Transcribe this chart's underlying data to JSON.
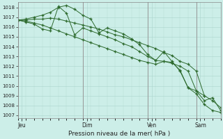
{
  "background_color": "#cceee8",
  "grid_color": "#aad4cc",
  "line_color": "#2d6a2d",
  "marker_color": "#2d6a2d",
  "ylabel_values": [
    1007,
    1008,
    1009,
    1010,
    1011,
    1012,
    1013,
    1014,
    1015,
    1016,
    1017,
    1018
  ],
  "ylim": [
    1006.7,
    1018.5
  ],
  "xlabel": "Pression niveau de la mer( hPa )",
  "xtick_labels": [
    "Jeu",
    "Dim",
    "Ven",
    "Sam"
  ],
  "series": [
    {
      "x": [
        0,
        1,
        2,
        3,
        4,
        5,
        6,
        7,
        8,
        9,
        10,
        11,
        12,
        13,
        14,
        15,
        16,
        17,
        18,
        19,
        20,
        21,
        22,
        23
      ],
      "y": [
        1016.7,
        1016.7,
        1016.8,
        1016.8,
        1016.9,
        1016.8,
        1016.6,
        1016.4,
        1016.2,
        1016.0,
        1015.8,
        1015.5,
        1015.2,
        1015.0,
        1014.7,
        1014.4,
        1014.1,
        1013.8,
        1013.4,
        1013.1,
        1012.5,
        1012.2,
        1011.5,
        1009.0
      ]
    },
    {
      "x": [
        0,
        1,
        2,
        3,
        4,
        5,
        6,
        7,
        8,
        9,
        10,
        11,
        12,
        13,
        14,
        15,
        16,
        17,
        18,
        19,
        20,
        21,
        22,
        23,
        24,
        25
      ],
      "y": [
        1016.7,
        1016.6,
        1016.4,
        1016.2,
        1015.9,
        1015.6,
        1015.3,
        1015.0,
        1014.7,
        1014.4,
        1014.1,
        1013.8,
        1013.5,
        1013.2,
        1012.9,
        1012.6,
        1012.4,
        1012.2,
        1012.5,
        1012.3,
        1012.0,
        1011.5,
        1009.5,
        1009.0,
        1008.5,
        1007.8
      ]
    },
    {
      "x": [
        0,
        1,
        2,
        3,
        4,
        5,
        6,
        7,
        8,
        9,
        10,
        11,
        12,
        13,
        14,
        15,
        16,
        17,
        18,
        19,
        20,
        21,
        22,
        23,
        24,
        25
      ],
      "y": [
        1016.7,
        1016.8,
        1017.0,
        1017.2,
        1017.5,
        1018.0,
        1018.2,
        1017.8,
        1017.2,
        1016.8,
        1015.4,
        1015.9,
        1015.6,
        1015.3,
        1014.8,
        1014.2,
        1013.2,
        1012.6,
        1012.5,
        1012.4,
        1011.6,
        1009.8,
        1009.2,
        1008.1,
        1007.5,
        1007.3
      ]
    },
    {
      "x": [
        0,
        1,
        2,
        3,
        4,
        5,
        6,
        7,
        8,
        9,
        10,
        11,
        12,
        13,
        14,
        15,
        16,
        17,
        18,
        19,
        20,
        21,
        22,
        23,
        24,
        25
      ],
      "y": [
        1016.7,
        1016.5,
        1016.3,
        1015.8,
        1015.6,
        1018.1,
        1017.4,
        1015.2,
        1015.9,
        1015.6,
        1015.3,
        1015.0,
        1014.7,
        1014.3,
        1014.0,
        1013.5,
        1013.0,
        1012.6,
        1013.5,
        1012.5,
        1011.5,
        1009.8,
        1009.5,
        1008.5,
        1008.8,
        1007.5
      ]
    }
  ],
  "xlim": [
    0,
    25
  ],
  "xtick_positions": [
    0.5,
    8.5,
    16.5,
    22.5
  ],
  "vline_positions": [
    0,
    8,
    16,
    22
  ],
  "ylabel_fontsize": 5.0,
  "xlabel_fontsize": 6.5
}
